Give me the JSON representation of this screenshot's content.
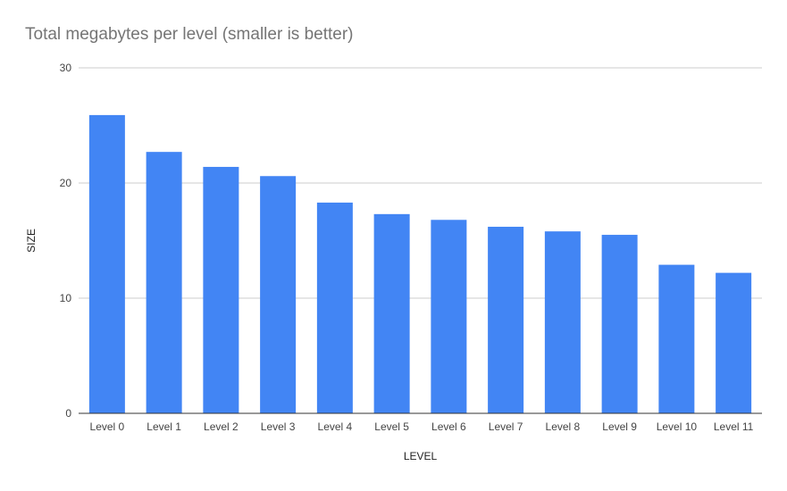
{
  "chart_data": {
    "type": "bar",
    "title": "Total megabytes per level (smaller is better)",
    "xlabel": "LEVEL",
    "ylabel": "SIZE",
    "ylim": [
      0,
      30
    ],
    "yticks": [
      0,
      10,
      20,
      30
    ],
    "grid": true,
    "legend": "none",
    "categories": [
      "Level 0",
      "Level 1",
      "Level 2",
      "Level 3",
      "Level 4",
      "Level 5",
      "Level 6",
      "Level 7",
      "Level 8",
      "Level 9",
      "Level 10",
      "Level 11"
    ],
    "values": [
      25.9,
      22.7,
      21.4,
      20.6,
      18.3,
      17.3,
      16.8,
      16.2,
      15.8,
      15.5,
      12.9,
      12.2
    ],
    "colors": {
      "bar": "#4285f4",
      "grid": "#cccccc",
      "axis": "#333333",
      "tick_text": "#444444",
      "axis_label_text": "#222222",
      "title_text": "#757575"
    }
  }
}
